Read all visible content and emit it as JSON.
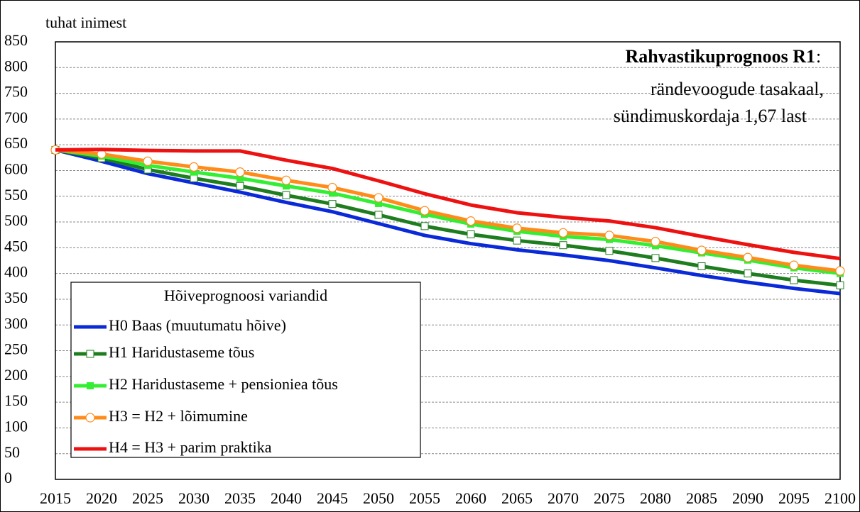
{
  "chart_data": {
    "type": "line",
    "title": "Rahvastikuprognoos R1",
    "title_suffix": ":",
    "subtitle": [
      "rändevoogude tasakaal,",
      "sündimuskordaja 1,67 last"
    ],
    "y_label": "tuhat inimest",
    "legend_title": "Hõiveprognoosi variandid",
    "legend_position": "lower-left",
    "grid": true,
    "x": [
      2015,
      2020,
      2025,
      2030,
      2035,
      2040,
      2045,
      2050,
      2055,
      2060,
      2065,
      2070,
      2075,
      2080,
      2085,
      2090,
      2095,
      2100
    ],
    "xlim": [
      2015,
      2100
    ],
    "ylim": [
      0,
      850
    ],
    "yticks": [
      0,
      50,
      100,
      150,
      200,
      250,
      300,
      350,
      400,
      450,
      500,
      550,
      600,
      650,
      700,
      750,
      800,
      850
    ],
    "series": [
      {
        "name": "H0 Baas (muutumatu hõive)",
        "color": "#0a2ad8",
        "marker": "none",
        "values": [
          640,
          618,
          594,
          576,
          558,
          538,
          520,
          497,
          474,
          458,
          446,
          436,
          425,
          411,
          396,
          383,
          371,
          361
        ]
      },
      {
        "name": "H1 Haridustaseme tõus",
        "color": "#1e7d1e",
        "marker": "square-open",
        "values": [
          640,
          624,
          602,
          585,
          570,
          552,
          535,
          514,
          492,
          476,
          464,
          455,
          444,
          430,
          414,
          400,
          387,
          377
        ]
      },
      {
        "name": "H2 Haridustaseme + pensioniea tõus",
        "color": "#33ee33",
        "marker": "square",
        "values": [
          640,
          628,
          610,
          597,
          585,
          570,
          556,
          536,
          515,
          496,
          482,
          472,
          466,
          454,
          440,
          426,
          411,
          400
        ]
      },
      {
        "name": "H3 = H2 + lõimumine",
        "color": "#ff8c1a",
        "marker": "circle-open",
        "values": [
          640,
          632,
          618,
          607,
          597,
          581,
          567,
          547,
          522,
          502,
          488,
          479,
          474,
          462,
          445,
          431,
          416,
          405
        ]
      },
      {
        "name": "H4 = H3 + parim praktika",
        "color": "#ee1111",
        "marker": "none",
        "values": [
          640,
          641,
          639,
          638,
          638,
          620,
          604,
          580,
          555,
          533,
          518,
          509,
          502,
          489,
          472,
          456,
          441,
          429
        ]
      }
    ]
  }
}
